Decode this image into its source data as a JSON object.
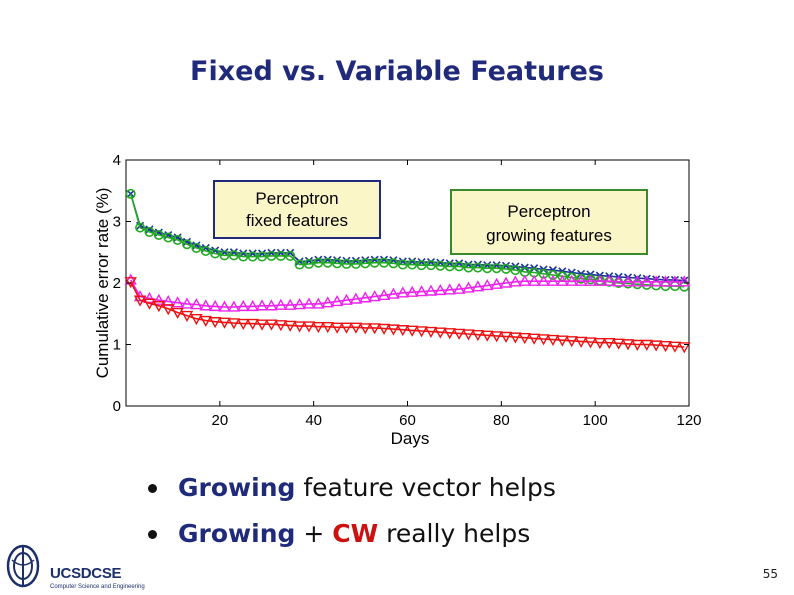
{
  "slide": {
    "title": "Fixed vs. Variable Features",
    "bullet1_strong": "Growing",
    "bullet1_rest": " feature vector helps",
    "bullet2_strong": "Growing",
    "bullet2_mid": " + ",
    "bullet2_cw": "CW",
    "bullet2_rest": " really helps",
    "page_number": "55"
  },
  "logo": {
    "main": "UCSDCSE",
    "sub": "Computer Science and Engineering"
  },
  "chart_data": {
    "type": "line",
    "xlabel": "Days",
    "ylabel": "Cumulative error rate (%)",
    "xlim": [
      0,
      120
    ],
    "ylim": [
      0,
      4
    ],
    "xticks": [
      20,
      40,
      60,
      80,
      100,
      120
    ],
    "yticks": [
      0,
      1,
      2,
      3,
      4
    ],
    "grid": false,
    "annotations": [
      {
        "text_lines": [
          "Perceptron",
          "fixed features"
        ],
        "border": "#1f2a7a",
        "fill": "#fbf6c8"
      },
      {
        "text_lines": [
          "Perceptron",
          "growing features"
        ],
        "border": "#3a8a2a",
        "fill": "#fbf6c8"
      }
    ],
    "x": [
      1,
      3,
      5,
      7,
      9,
      11,
      13,
      15,
      17,
      19,
      21,
      23,
      25,
      27,
      29,
      31,
      33,
      35,
      37,
      39,
      41,
      43,
      45,
      47,
      49,
      51,
      53,
      55,
      57,
      59,
      61,
      63,
      65,
      67,
      69,
      71,
      73,
      75,
      77,
      79,
      81,
      83,
      85,
      87,
      89,
      91,
      93,
      95,
      97,
      99,
      101,
      103,
      105,
      107,
      109,
      111,
      113,
      115,
      117,
      119
    ],
    "series": [
      {
        "color": "#1a3399",
        "marker": "x",
        "values": [
          3.45,
          2.93,
          2.87,
          2.82,
          2.78,
          2.74,
          2.67,
          2.61,
          2.57,
          2.53,
          2.5,
          2.5,
          2.48,
          2.48,
          2.48,
          2.49,
          2.49,
          2.49,
          2.35,
          2.36,
          2.38,
          2.38,
          2.37,
          2.36,
          2.36,
          2.37,
          2.38,
          2.38,
          2.37,
          2.35,
          2.35,
          2.34,
          2.34,
          2.33,
          2.32,
          2.32,
          2.3,
          2.3,
          2.29,
          2.29,
          2.28,
          2.27,
          2.25,
          2.24,
          2.22,
          2.21,
          2.19,
          2.17,
          2.15,
          2.14,
          2.12,
          2.11,
          2.1,
          2.09,
          2.08,
          2.07,
          2.06,
          2.05,
          2.05,
          2.04
        ]
      },
      {
        "color": "#22aa22",
        "marker": "o",
        "values": [
          3.45,
          2.9,
          2.83,
          2.78,
          2.74,
          2.7,
          2.63,
          2.57,
          2.52,
          2.48,
          2.45,
          2.45,
          2.43,
          2.43,
          2.43,
          2.44,
          2.44,
          2.44,
          2.3,
          2.31,
          2.33,
          2.33,
          2.32,
          2.31,
          2.31,
          2.32,
          2.33,
          2.33,
          2.32,
          2.3,
          2.3,
          2.29,
          2.29,
          2.28,
          2.27,
          2.27,
          2.25,
          2.25,
          2.24,
          2.24,
          2.23,
          2.21,
          2.18,
          2.17,
          2.15,
          2.13,
          2.11,
          2.09,
          2.07,
          2.06,
          2.04,
          2.02,
          2.0,
          1.99,
          1.98,
          1.97,
          1.96,
          1.95,
          1.95,
          1.94
        ]
      },
      {
        "color": "#ee22ee",
        "marker": "triangle-up",
        "values": [
          2.05,
          1.78,
          1.75,
          1.72,
          1.7,
          1.68,
          1.66,
          1.65,
          1.63,
          1.62,
          1.61,
          1.61,
          1.62,
          1.62,
          1.63,
          1.63,
          1.64,
          1.64,
          1.65,
          1.66,
          1.66,
          1.68,
          1.7,
          1.72,
          1.74,
          1.76,
          1.78,
          1.8,
          1.82,
          1.84,
          1.85,
          1.86,
          1.87,
          1.88,
          1.89,
          1.9,
          1.92,
          1.94,
          1.96,
          1.98,
          2.0,
          2.02,
          2.03,
          2.03,
          2.03,
          2.03,
          2.03,
          2.03,
          2.03,
          2.03,
          2.03,
          2.03,
          2.02,
          2.02,
          2.02,
          2.02,
          2.02,
          2.02,
          2.02,
          2.02
        ]
      },
      {
        "color": "#ee1111",
        "marker": "triangle-down",
        "values": [
          2.02,
          1.72,
          1.67,
          1.63,
          1.58,
          1.52,
          1.47,
          1.42,
          1.39,
          1.37,
          1.36,
          1.35,
          1.34,
          1.34,
          1.33,
          1.33,
          1.32,
          1.31,
          1.3,
          1.3,
          1.29,
          1.29,
          1.28,
          1.28,
          1.28,
          1.27,
          1.27,
          1.26,
          1.25,
          1.24,
          1.23,
          1.22,
          1.21,
          1.2,
          1.19,
          1.18,
          1.17,
          1.16,
          1.15,
          1.14,
          1.13,
          1.12,
          1.11,
          1.1,
          1.09,
          1.08,
          1.07,
          1.06,
          1.05,
          1.04,
          1.03,
          1.03,
          1.02,
          1.01,
          1.0,
          1.0,
          0.99,
          0.98,
          0.97,
          0.96
        ]
      }
    ]
  }
}
